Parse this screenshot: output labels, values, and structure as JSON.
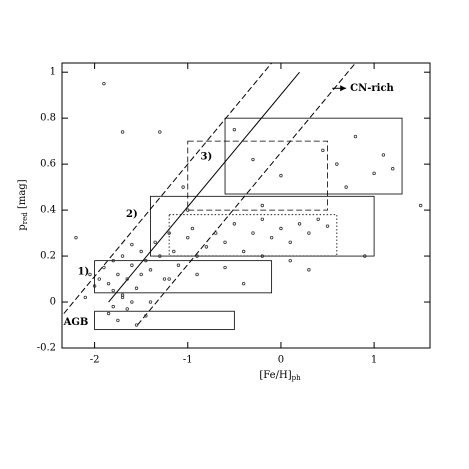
{
  "chart_data": {
    "type": "scatter",
    "x_label": "[Fe/H]",
    "x_label_sub": "ph",
    "y_label": "p",
    "y_label_sub": "red",
    "y_label_unit": " [mag]",
    "xlim": [
      -2.35,
      1.6
    ],
    "ylim": [
      -0.2,
      1.04
    ],
    "xticks": [
      -2,
      -1,
      0,
      1
    ],
    "yticks": [
      -0.2,
      0,
      0.2,
      0.4,
      0.6,
      0.8,
      1
    ],
    "color": "#333333",
    "lines": [
      {
        "style": "solid",
        "x": [
          -1.85,
          0.2
        ],
        "y": [
          0,
          1
        ]
      },
      {
        "style": "dashed",
        "x": [
          -2.33,
          -0.1
        ],
        "y": [
          -0.05,
          1.04
        ]
      },
      {
        "style": "dashed",
        "x": [
          -1.54,
          0.8
        ],
        "y": [
          -0.1,
          1.04
        ]
      }
    ],
    "boxes": [
      {
        "label": "1)",
        "style": "solid",
        "x": [
          -2,
          -0.1
        ],
        "y": [
          0.04,
          0.18
        ],
        "label_at": [
          -2.12,
          0.13
        ]
      },
      {
        "label": "AGB",
        "style": "solid",
        "x": [
          -2,
          -0.5
        ],
        "y": [
          -0.12,
          -0.04
        ],
        "label_at": [
          -2.2,
          -0.09
        ]
      },
      {
        "label": "2)",
        "style": "solid",
        "x": [
          -1.4,
          1.0
        ],
        "y": [
          0.2,
          0.46
        ],
        "label_at": [
          -1.6,
          0.38
        ]
      },
      {
        "label": null,
        "style": "dotted",
        "x": [
          -1.2,
          0.6
        ],
        "y": [
          0.2,
          0.38
        ],
        "label_at": null
      },
      {
        "label": "3)",
        "style": "dashed",
        "x": [
          -1.0,
          0.5
        ],
        "y": [
          0.4,
          0.7
        ],
        "label_at": [
          -0.8,
          0.63
        ]
      },
      {
        "label": null,
        "style": "solid",
        "x": [
          -0.6,
          1.3
        ],
        "y": [
          0.47,
          0.8
        ],
        "label_at": null
      }
    ],
    "arrow": {
      "label": "CN-rich",
      "x": [
        0.55,
        0.7
      ],
      "y": [
        0.93,
        0.93
      ]
    },
    "x": [
      -1.9,
      -1.3,
      -1.7,
      -1.05,
      -2.05,
      -1.95,
      -1.9,
      -1.85,
      -1.8,
      -1.8,
      -1.75,
      -1.7,
      -1.7,
      -1.65,
      -1.6,
      -1.6,
      -1.55,
      -1.5,
      -1.5,
      -1.45,
      -1.4,
      -1.35,
      -1.3,
      -1.25,
      -1.2,
      -1.15,
      -1.1,
      -1.0,
      -0.95,
      -0.9,
      -0.8,
      -0.7,
      -0.6,
      -0.5,
      -0.4,
      -0.3,
      -0.2,
      -0.1,
      0.0,
      0.1,
      0.2,
      0.3,
      0.4,
      0.5,
      -1.85,
      -1.75,
      -1.65,
      -1.55,
      -1.45,
      -1.6,
      -1.7,
      -1.8,
      -2.0,
      -2.1,
      -1.4,
      -1.2,
      -0.9,
      -0.6,
      -0.4,
      -0.2,
      0.1,
      0.3,
      0.6,
      0.8,
      1.0,
      1.1,
      1.2,
      0.7,
      -0.3,
      0.0,
      0.45,
      -0.5,
      -1.0,
      -0.2,
      0.9,
      1.5,
      -2.2
    ],
    "y": [
      0.95,
      0.74,
      0.74,
      0.5,
      0.12,
      0.1,
      0.15,
      0.08,
      0.18,
      0.05,
      0.12,
      0.2,
      0.02,
      0.1,
      0.16,
      0.25,
      0.06,
      0.12,
      0.22,
      0.18,
      0.14,
      0.26,
      0.2,
      0.1,
      0.3,
      0.22,
      0.16,
      0.28,
      0.32,
      0.2,
      0.24,
      0.3,
      0.26,
      0.34,
      0.22,
      0.3,
      0.36,
      0.28,
      0.32,
      0.26,
      0.34,
      0.3,
      0.36,
      0.33,
      -0.05,
      -0.08,
      -0.03,
      -0.1,
      -0.06,
      0.0,
      0.03,
      -0.02,
      0.07,
      0.02,
      0.0,
      0.1,
      0.12,
      0.15,
      0.08,
      0.2,
      0.18,
      0.14,
      0.6,
      0.72,
      0.56,
      0.64,
      0.58,
      0.5,
      0.62,
      0.55,
      0.66,
      0.75,
      0.4,
      0.42,
      0.2,
      0.42,
      0.28
    ]
  }
}
